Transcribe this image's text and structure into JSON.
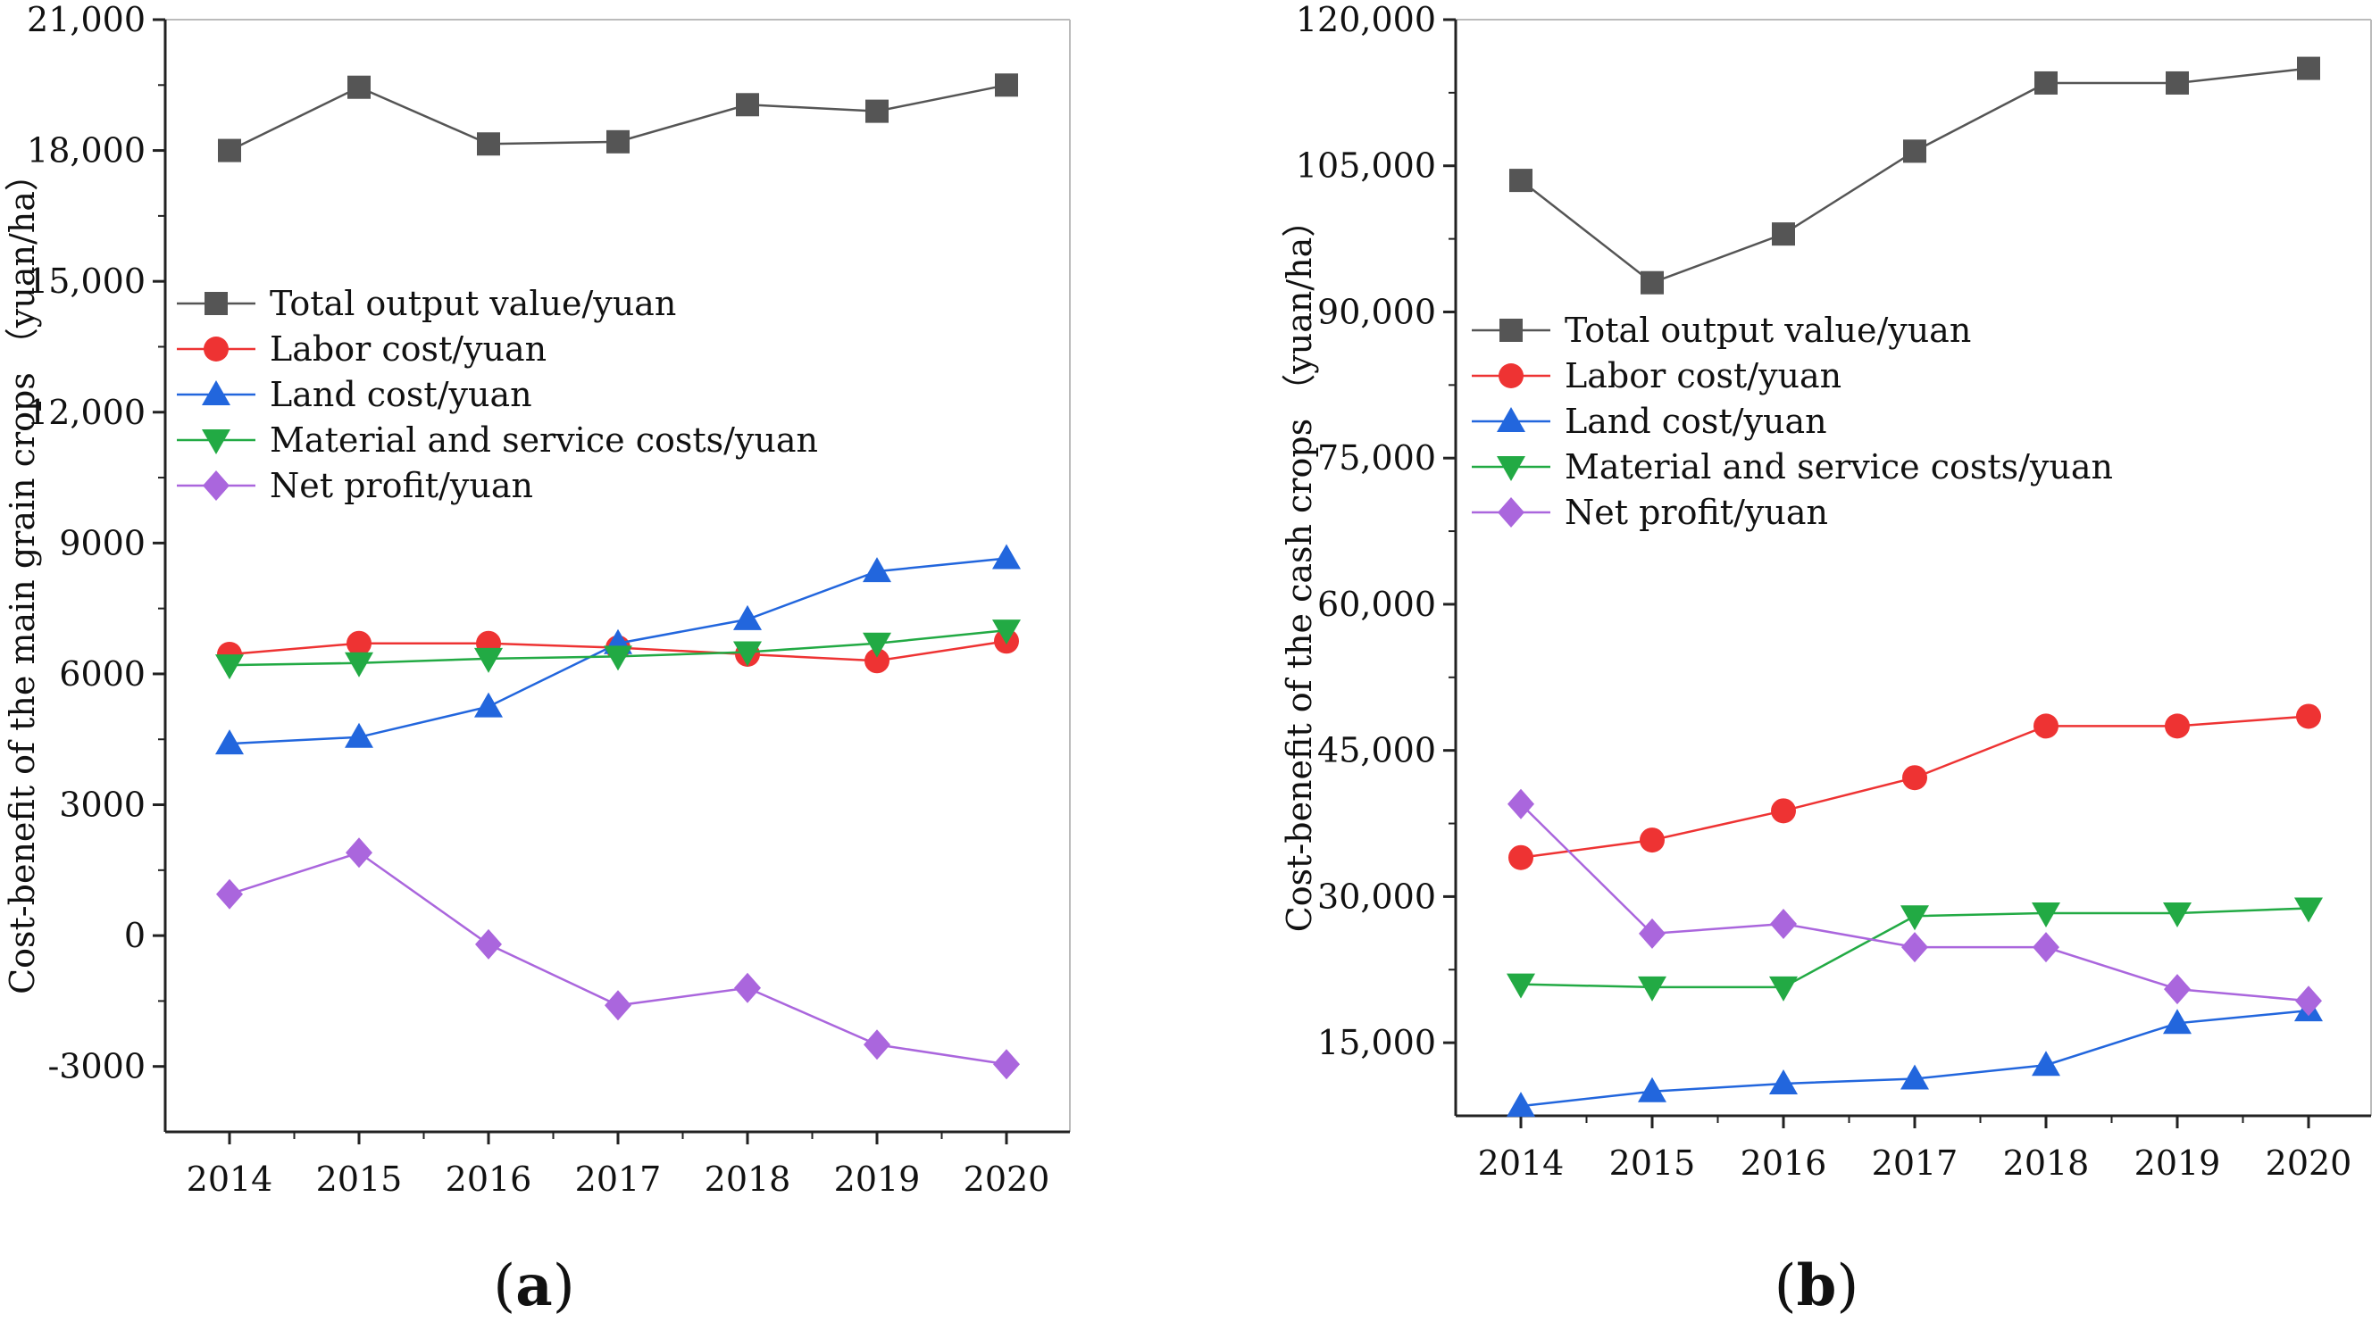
{
  "figure": {
    "panel_labels": [
      "a",
      "b"
    ]
  },
  "chart_data": [
    {
      "type": "line",
      "panel": "a",
      "title": "",
      "xlabel": "",
      "ylabel": "Cost-benefit of the main grain crops （yuan/ha）",
      "x": [
        "2014",
        "2015",
        "2016",
        "2017",
        "2018",
        "2019",
        "2020"
      ],
      "ylim": [
        -4500,
        21000
      ],
      "yticks": [
        -3000,
        0,
        3000,
        6000,
        9000,
        12000,
        15000,
        18000,
        21000
      ],
      "ytick_labels": [
        "-3000",
        "0",
        "3000",
        "6000",
        "9000",
        "12,000",
        "15,000",
        "18,000",
        "21,000"
      ],
      "legend_position": "upper-left",
      "series": [
        {
          "name": "Total output value/yuan",
          "color": "#555555",
          "marker": "square",
          "values": [
            18000,
            19450,
            18150,
            18200,
            19050,
            18900,
            19500
          ]
        },
        {
          "name": "Labor cost/yuan",
          "color": "#ee3333",
          "marker": "circle",
          "values": [
            6450,
            6700,
            6700,
            6600,
            6450,
            6300,
            6750
          ]
        },
        {
          "name": "Land cost/yuan",
          "color": "#2266dd",
          "marker": "triangle-up",
          "values": [
            4400,
            4550,
            5250,
            6700,
            7250,
            8350,
            8650
          ]
        },
        {
          "name": "Material and service costs/yuan",
          "color": "#22aa44",
          "marker": "triangle-down",
          "values": [
            6200,
            6250,
            6350,
            6400,
            6500,
            6700,
            7000
          ]
        },
        {
          "name": "Net profit/yuan",
          "color": "#aa66dd",
          "marker": "diamond",
          "values": [
            950,
            1900,
            -200,
            -1600,
            -1200,
            -2500,
            -2950
          ]
        }
      ]
    },
    {
      "type": "line",
      "panel": "b",
      "title": "",
      "xlabel": "",
      "ylabel": "Cost-benefit of the cash crops （yuan/ha）",
      "x": [
        "2014",
        "2015",
        "2016",
        "2017",
        "2018",
        "2019",
        "2020"
      ],
      "ylim": [
        7500,
        120000
      ],
      "yticks": [
        15000,
        30000,
        45000,
        60000,
        75000,
        90000,
        105000,
        120000
      ],
      "ytick_labels": [
        "15,000",
        "30,000",
        "45,000",
        "60,000",
        "75,000",
        "90,000",
        "105,000",
        "120,000"
      ],
      "legend_position": "upper-left",
      "series": [
        {
          "name": "Total output value/yuan",
          "color": "#555555",
          "marker": "square",
          "values": [
            103500,
            93000,
            98000,
            106500,
            113500,
            113500,
            115000
          ]
        },
        {
          "name": "Labor cost/yuan",
          "color": "#ee3333",
          "marker": "circle",
          "values": [
            34000,
            35800,
            38800,
            42200,
            47500,
            47500,
            48500
          ]
        },
        {
          "name": "Land cost/yuan",
          "color": "#2266dd",
          "marker": "triangle-up",
          "values": [
            8500,
            10000,
            10800,
            11300,
            12700,
            17000,
            18300
          ]
        },
        {
          "name": "Material and service costs/yuan",
          "color": "#22aa44",
          "marker": "triangle-down",
          "values": [
            21000,
            20700,
            20700,
            28000,
            28300,
            28300,
            28800
          ]
        },
        {
          "name": "Net profit/yuan",
          "color": "#aa66dd",
          "marker": "diamond",
          "values": [
            39500,
            26200,
            27200,
            24800,
            24800,
            20500,
            19300
          ]
        }
      ]
    }
  ]
}
